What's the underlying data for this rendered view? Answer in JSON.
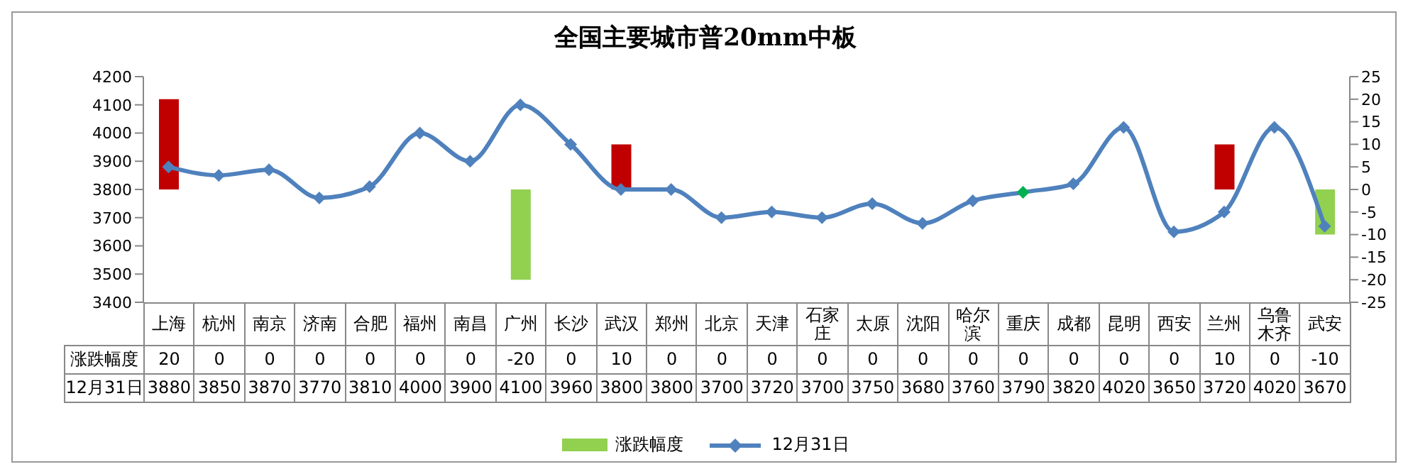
{
  "chart_data": {
    "type": "bar",
    "title": "全国主要城市普20mm中板",
    "categories": [
      "上海",
      "杭州",
      "南京",
      "济南",
      "合肥",
      "福州",
      "南昌",
      "广州",
      "长沙",
      "武汉",
      "郑州",
      "北京",
      "天津",
      "石家庄",
      "太原",
      "沈阳",
      "哈尔滨",
      "重庆",
      "成都",
      "昆明",
      "西安",
      "兰州",
      "乌鲁木齐",
      "武安"
    ],
    "series": [
      {
        "name": "涨跌幅度",
        "axis": "y2",
        "color": "#92d050",
        "colors": [
          "#c00000",
          "#92d050",
          "#92d050",
          "#92d050",
          "#92d050",
          "#92d050",
          "#92d050",
          "#92d050",
          "#92d050",
          "#c00000",
          "#92d050",
          "#92d050",
          "#92d050",
          "#92d050",
          "#92d050",
          "#92d050",
          "#92d050",
          "#92d050",
          "#92d050",
          "#92d050",
          "#92d050",
          "#c00000",
          "#92d050",
          "#92d050"
        ],
        "values": [
          20,
          0,
          0,
          0,
          0,
          0,
          0,
          -20,
          0,
          10,
          0,
          0,
          0,
          0,
          0,
          0,
          0,
          0,
          0,
          0,
          0,
          10,
          0,
          -10
        ]
      },
      {
        "name": "12月31日",
        "type": "line",
        "color": "#4f81bd",
        "marker": "diamond",
        "colors": [
          "#4f81bd",
          "#4f81bd",
          "#4f81bd",
          "#4f81bd",
          "#4f81bd",
          "#4f81bd",
          "#4f81bd",
          "#4f81bd",
          "#4f81bd",
          "#4f81bd",
          "#4f81bd",
          "#4f81bd",
          "#4f81bd",
          "#4f81bd",
          "#4f81bd",
          "#4f81bd",
          "#4f81bd",
          "#00b050",
          "#4f81bd",
          "#4f81bd",
          "#4f81bd",
          "#4f81bd",
          "#4f81bd",
          "#4f81bd"
        ],
        "values": [
          3880,
          3850,
          3870,
          3770,
          3810,
          4000,
          3900,
          4100,
          3960,
          3800,
          3800,
          3700,
          3720,
          3700,
          3750,
          3680,
          3760,
          3790,
          3820,
          4020,
          3650,
          3720,
          4020,
          3670
        ]
      }
    ],
    "ylim": [
      3400,
      4200
    ],
    "yticks": [
      3400,
      3500,
      3600,
      3700,
      3800,
      3900,
      4000,
      4100,
      4200
    ],
    "y2lim": [
      -25,
      25
    ],
    "y2ticks": [
      -25,
      -20,
      -15,
      -10,
      -5,
      0,
      5,
      10,
      15,
      20,
      25
    ],
    "data_labels": true,
    "legend": "bottom"
  }
}
